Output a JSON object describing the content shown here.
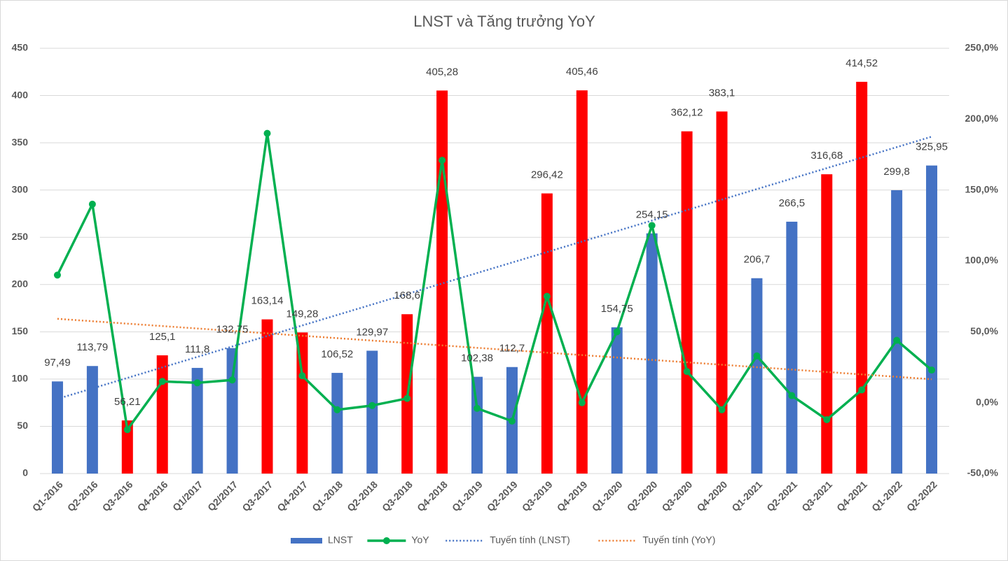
{
  "chart_data": {
    "type": "combo",
    "title": "LNST và Tăng trưởng YoY",
    "categories": [
      "Q1-2016",
      "Q2-2016",
      "Q3-2016",
      "Q4-2016",
      "Q1/2017",
      "Q2/2017",
      "Q3-2017",
      "Q4-2017",
      "Q1-2018",
      "Q2-2018",
      "Q3-2018",
      "Q4-2018",
      "Q1-2019",
      "Q2-2019",
      "Q3-2019",
      "Q4-2019",
      "Q1-2020",
      "Q2-2020",
      "Q3-2020",
      "Q4-2020",
      "Q1-2021",
      "Q2-2021",
      "Q3-2021",
      "Q4-2021",
      "Q1-2022",
      "Q2-2022"
    ],
    "series": [
      {
        "name": "LNST",
        "type": "bar",
        "color": "#4472c4",
        "colors": [
          "#4472c4",
          "#4472c4",
          "#ff0000",
          "#ff0000",
          "#4472c4",
          "#4472c4",
          "#ff0000",
          "#ff0000",
          "#4472c4",
          "#4472c4",
          "#ff0000",
          "#ff0000",
          "#4472c4",
          "#4472c4",
          "#ff0000",
          "#ff0000",
          "#4472c4",
          "#4472c4",
          "#ff0000",
          "#ff0000",
          "#4472c4",
          "#4472c4",
          "#ff0000",
          "#ff0000",
          "#4472c4",
          "#4472c4"
        ],
        "values": [
          97.49,
          113.79,
          56.21,
          125.1,
          111.8,
          132.75,
          163.14,
          149.28,
          106.52,
          129.97,
          168.6,
          405.28,
          102.38,
          112.7,
          296.42,
          405.46,
          154.75,
          254.15,
          362.12,
          383.1,
          206.7,
          266.5,
          316.68,
          414.52,
          299.8,
          325.95
        ],
        "value_labels": [
          "97,49",
          "113,79",
          "56,21",
          "125,1",
          "111,8",
          "132,75",
          "163,14",
          "149,28",
          "106,52",
          "129,97",
          "168,6",
          "405,28",
          "102,38",
          "112,7",
          "296,42",
          "405,46",
          "154,75",
          "254,15",
          "362,12",
          "383,1",
          "206,7",
          "266,5",
          "316,68",
          "414,52",
          "299,8",
          "325,95"
        ]
      },
      {
        "name": "YoY",
        "type": "line",
        "axis": "y2",
        "color": "#00b050",
        "values": [
          90,
          140,
          -19,
          15,
          14,
          16,
          190,
          19,
          -5,
          -2,
          3,
          171,
          -4,
          -13,
          75,
          0,
          50,
          125,
          22,
          -5,
          33,
          5,
          -12,
          9,
          44,
          23
        ]
      }
    ],
    "trendlines": [
      {
        "name": "Tuyến tính (LNST)",
        "color": "#4472c4"
      },
      {
        "name": "Tuyến tính (YoY)",
        "color": "#ed7d31"
      }
    ],
    "ylim": [
      0,
      450
    ],
    "yticks": [
      0,
      50,
      100,
      150,
      200,
      250,
      300,
      350,
      400,
      450
    ],
    "y2lim": [
      -50,
      250
    ],
    "y2ticks": [
      {
        "value": -50,
        "label": "-50,0%"
      },
      {
        "value": 0,
        "label": "0,0%"
      },
      {
        "value": 50,
        "label": "50,0%"
      },
      {
        "value": 100,
        "label": "100,0%"
      },
      {
        "value": 150,
        "label": "150,0%"
      },
      {
        "value": 200,
        "label": "200,0%"
      },
      {
        "value": 250,
        "label": "250,0%"
      }
    ],
    "grid": true,
    "legend": "bottom"
  }
}
